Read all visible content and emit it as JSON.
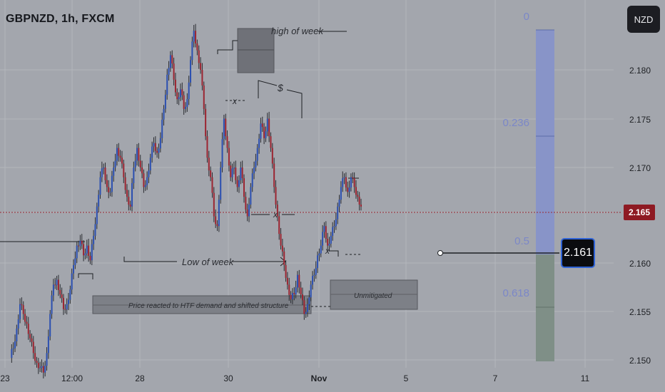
{
  "header": {
    "symbol": "GBPNZD, 1h, FXCM",
    "currency_button": "NZD"
  },
  "price_tag": "2.165",
  "measure_label": "2.161",
  "chart_data": {
    "type": "candlestick",
    "title": "GBPNZD, 1h, FXCM",
    "yaxis": {
      "ticks": [
        "2.180",
        "2.175",
        "2.170",
        "2.165",
        "2.160",
        "2.155",
        "2.150"
      ],
      "range": [
        2.1495,
        2.1875
      ]
    },
    "xaxis": {
      "ticks": [
        "23",
        "12:00",
        "28",
        "30",
        "Nov",
        "5",
        "7",
        "11"
      ]
    },
    "current_price": 2.165,
    "fib_levels": [
      {
        "label": "0",
        "price": 2.1842
      },
      {
        "label": "0.236",
        "price": 2.172
      },
      {
        "label": "0.5",
        "price": 2.1606
      },
      {
        "label": "0.618",
        "price": 2.1555
      }
    ],
    "annotations": {
      "high_of_week": "high of week",
      "low_of_week": "Low of week",
      "demand_note": "Price reacted to HTF demand and shifted structure",
      "unmitigated": "Unmitigated",
      "dollar": "$",
      "x_mark": "x"
    },
    "price_path": [
      2.1505,
      2.1515,
      2.1535,
      2.156,
      2.155,
      2.154,
      2.1525,
      2.151,
      2.15,
      2.1495,
      2.149,
      2.151,
      2.155,
      2.158,
      2.1585,
      2.157,
      2.1555,
      2.156,
      2.1575,
      2.16,
      2.162,
      2.1625,
      2.161,
      2.162,
      2.1605,
      2.163,
      2.166,
      2.169,
      2.17,
      2.168,
      2.1675,
      2.17,
      2.172,
      2.171,
      2.169,
      2.167,
      2.166,
      2.17,
      2.172,
      2.17,
      2.168,
      2.169,
      2.171,
      2.1725,
      2.1715,
      2.173,
      2.176,
      2.1795,
      2.1815,
      2.179,
      2.177,
      2.178,
      2.176,
      2.177,
      2.181,
      2.184,
      2.182,
      2.18,
      2.176,
      2.171,
      2.169,
      2.165,
      2.164,
      2.17,
      2.175,
      2.172,
      2.169,
      2.17,
      2.168,
      2.17,
      2.167,
      2.165,
      2.168,
      2.17,
      2.172,
      2.1745,
      2.173,
      2.175,
      2.172,
      2.168,
      2.165,
      2.162,
      2.16,
      2.158,
      2.1565,
      2.157,
      2.159,
      2.157,
      2.155,
      2.156,
      2.158,
      2.159,
      2.161,
      2.162,
      2.164,
      2.162,
      2.163,
      2.164,
      2.166,
      2.168,
      2.169,
      2.1675,
      2.169,
      2.168,
      2.167,
      2.166
    ]
  }
}
